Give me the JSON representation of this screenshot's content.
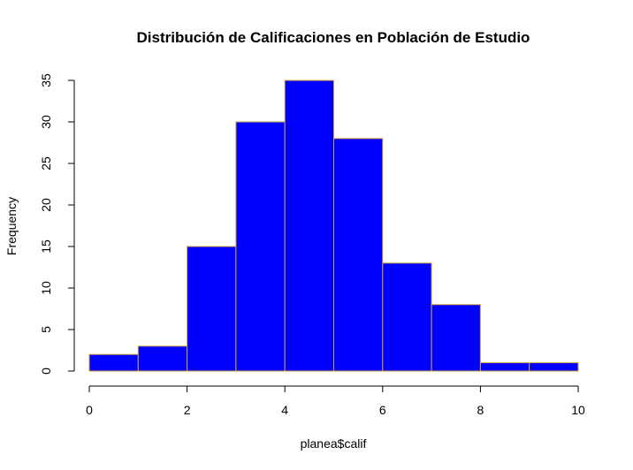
{
  "chart_data": {
    "type": "bar",
    "subtype": "histogram",
    "title": "Distribución de Calificaciones en Población de Estudio",
    "xlabel": "planea$calif",
    "ylabel": "Frequency",
    "bin_edges": [
      0,
      1,
      2,
      3,
      4,
      5,
      6,
      7,
      8,
      9,
      10
    ],
    "values": [
      2,
      3,
      15,
      30,
      35,
      28,
      13,
      8,
      1,
      1
    ],
    "xlim": [
      0,
      10
    ],
    "ylim": [
      0,
      35
    ],
    "xticks": [
      "0",
      "2",
      "4",
      "6",
      "8",
      "10"
    ],
    "yticks": [
      "0",
      "5",
      "10",
      "15",
      "20",
      "25",
      "30",
      "35"
    ],
    "grid": false,
    "legend": "none",
    "bar_fill": "#0000ff",
    "bar_border": "#d4a33c"
  }
}
